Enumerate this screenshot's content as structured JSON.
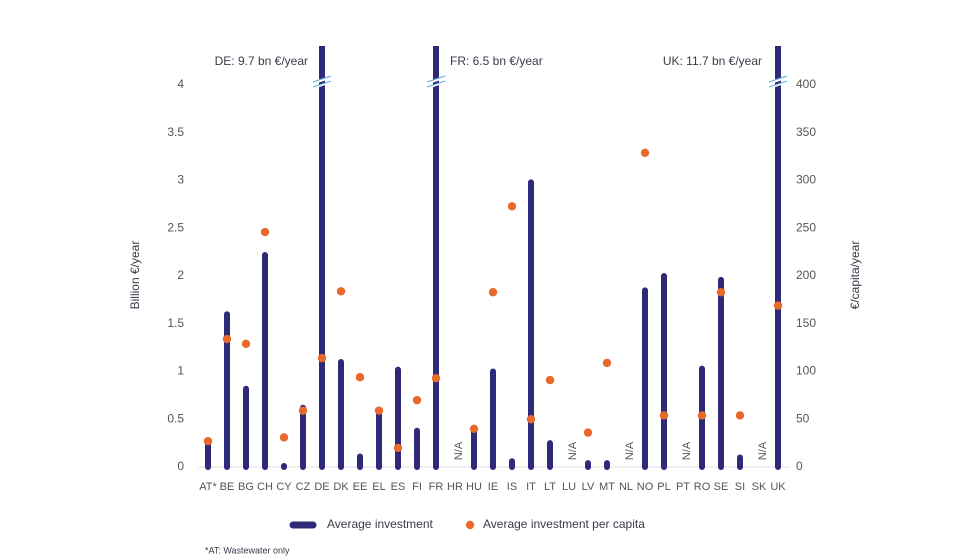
{
  "chart_data": {
    "type": "bar",
    "y_label": "Billion €/year",
    "y2_label": "€/capita/year",
    "footnote": "*AT: Wastewater only",
    "annotations": [
      "DE: 9.7 bn €/year",
      "FR: 6.5 bn €/year",
      "UK: 11.7 bn €/year"
    ],
    "categories": [
      "AT*",
      "BE",
      "BG",
      "CH",
      "CY",
      "CZ",
      "DE",
      "DK",
      "EE",
      "EL",
      "ES",
      "FI",
      "FR",
      "HR",
      "HU",
      "IE",
      "IS",
      "IT",
      "LT",
      "LU",
      "LV",
      "MT",
      "NL",
      "NO",
      "PL",
      "PT",
      "RO",
      "SE",
      "SI",
      "SK",
      "UK"
    ],
    "series": [
      {
        "name": "Average investment",
        "type": "bar",
        "color": "#2e2a78",
        "values": [
          0.25,
          1.6,
          0.82,
          2.22,
          0.01,
          0.62,
          9.7,
          1.1,
          0.11,
          0.6,
          1.02,
          0.38,
          6.5,
          null,
          0.4,
          1.0,
          0.06,
          2.98,
          0.25,
          null,
          0.04,
          0.04,
          null,
          1.85,
          2.0,
          null,
          1.03,
          1.96,
          0.1,
          null,
          11.7
        ],
        "value_labels": [
          null,
          null,
          null,
          null,
          null,
          null,
          null,
          null,
          null,
          null,
          null,
          null,
          null,
          "N/A",
          null,
          null,
          null,
          null,
          null,
          "N/A",
          null,
          null,
          "N/A",
          null,
          null,
          "N/A",
          null,
          null,
          null,
          "N/A",
          null
        ]
      },
      {
        "name": "Average investment per capita",
        "type": "scatter",
        "axis": "y2",
        "color": "#e8692a",
        "values": [
          27,
          134,
          129,
          246,
          31,
          59,
          114,
          184,
          94,
          59,
          20,
          70,
          93,
          null,
          40,
          183,
          273,
          50,
          91,
          null,
          36,
          109,
          null,
          329,
          54,
          null,
          54,
          183,
          54,
          null,
          169
        ]
      }
    ],
    "ylim": [
      0,
      4.4
    ],
    "yticks": [
      0,
      0.5,
      1,
      1.5,
      2,
      2.5,
      3,
      3.5,
      4
    ],
    "y2lim": [
      0,
      440
    ],
    "y2ticks": [
      0,
      50,
      100,
      150,
      200,
      250,
      300,
      350,
      400
    ]
  }
}
